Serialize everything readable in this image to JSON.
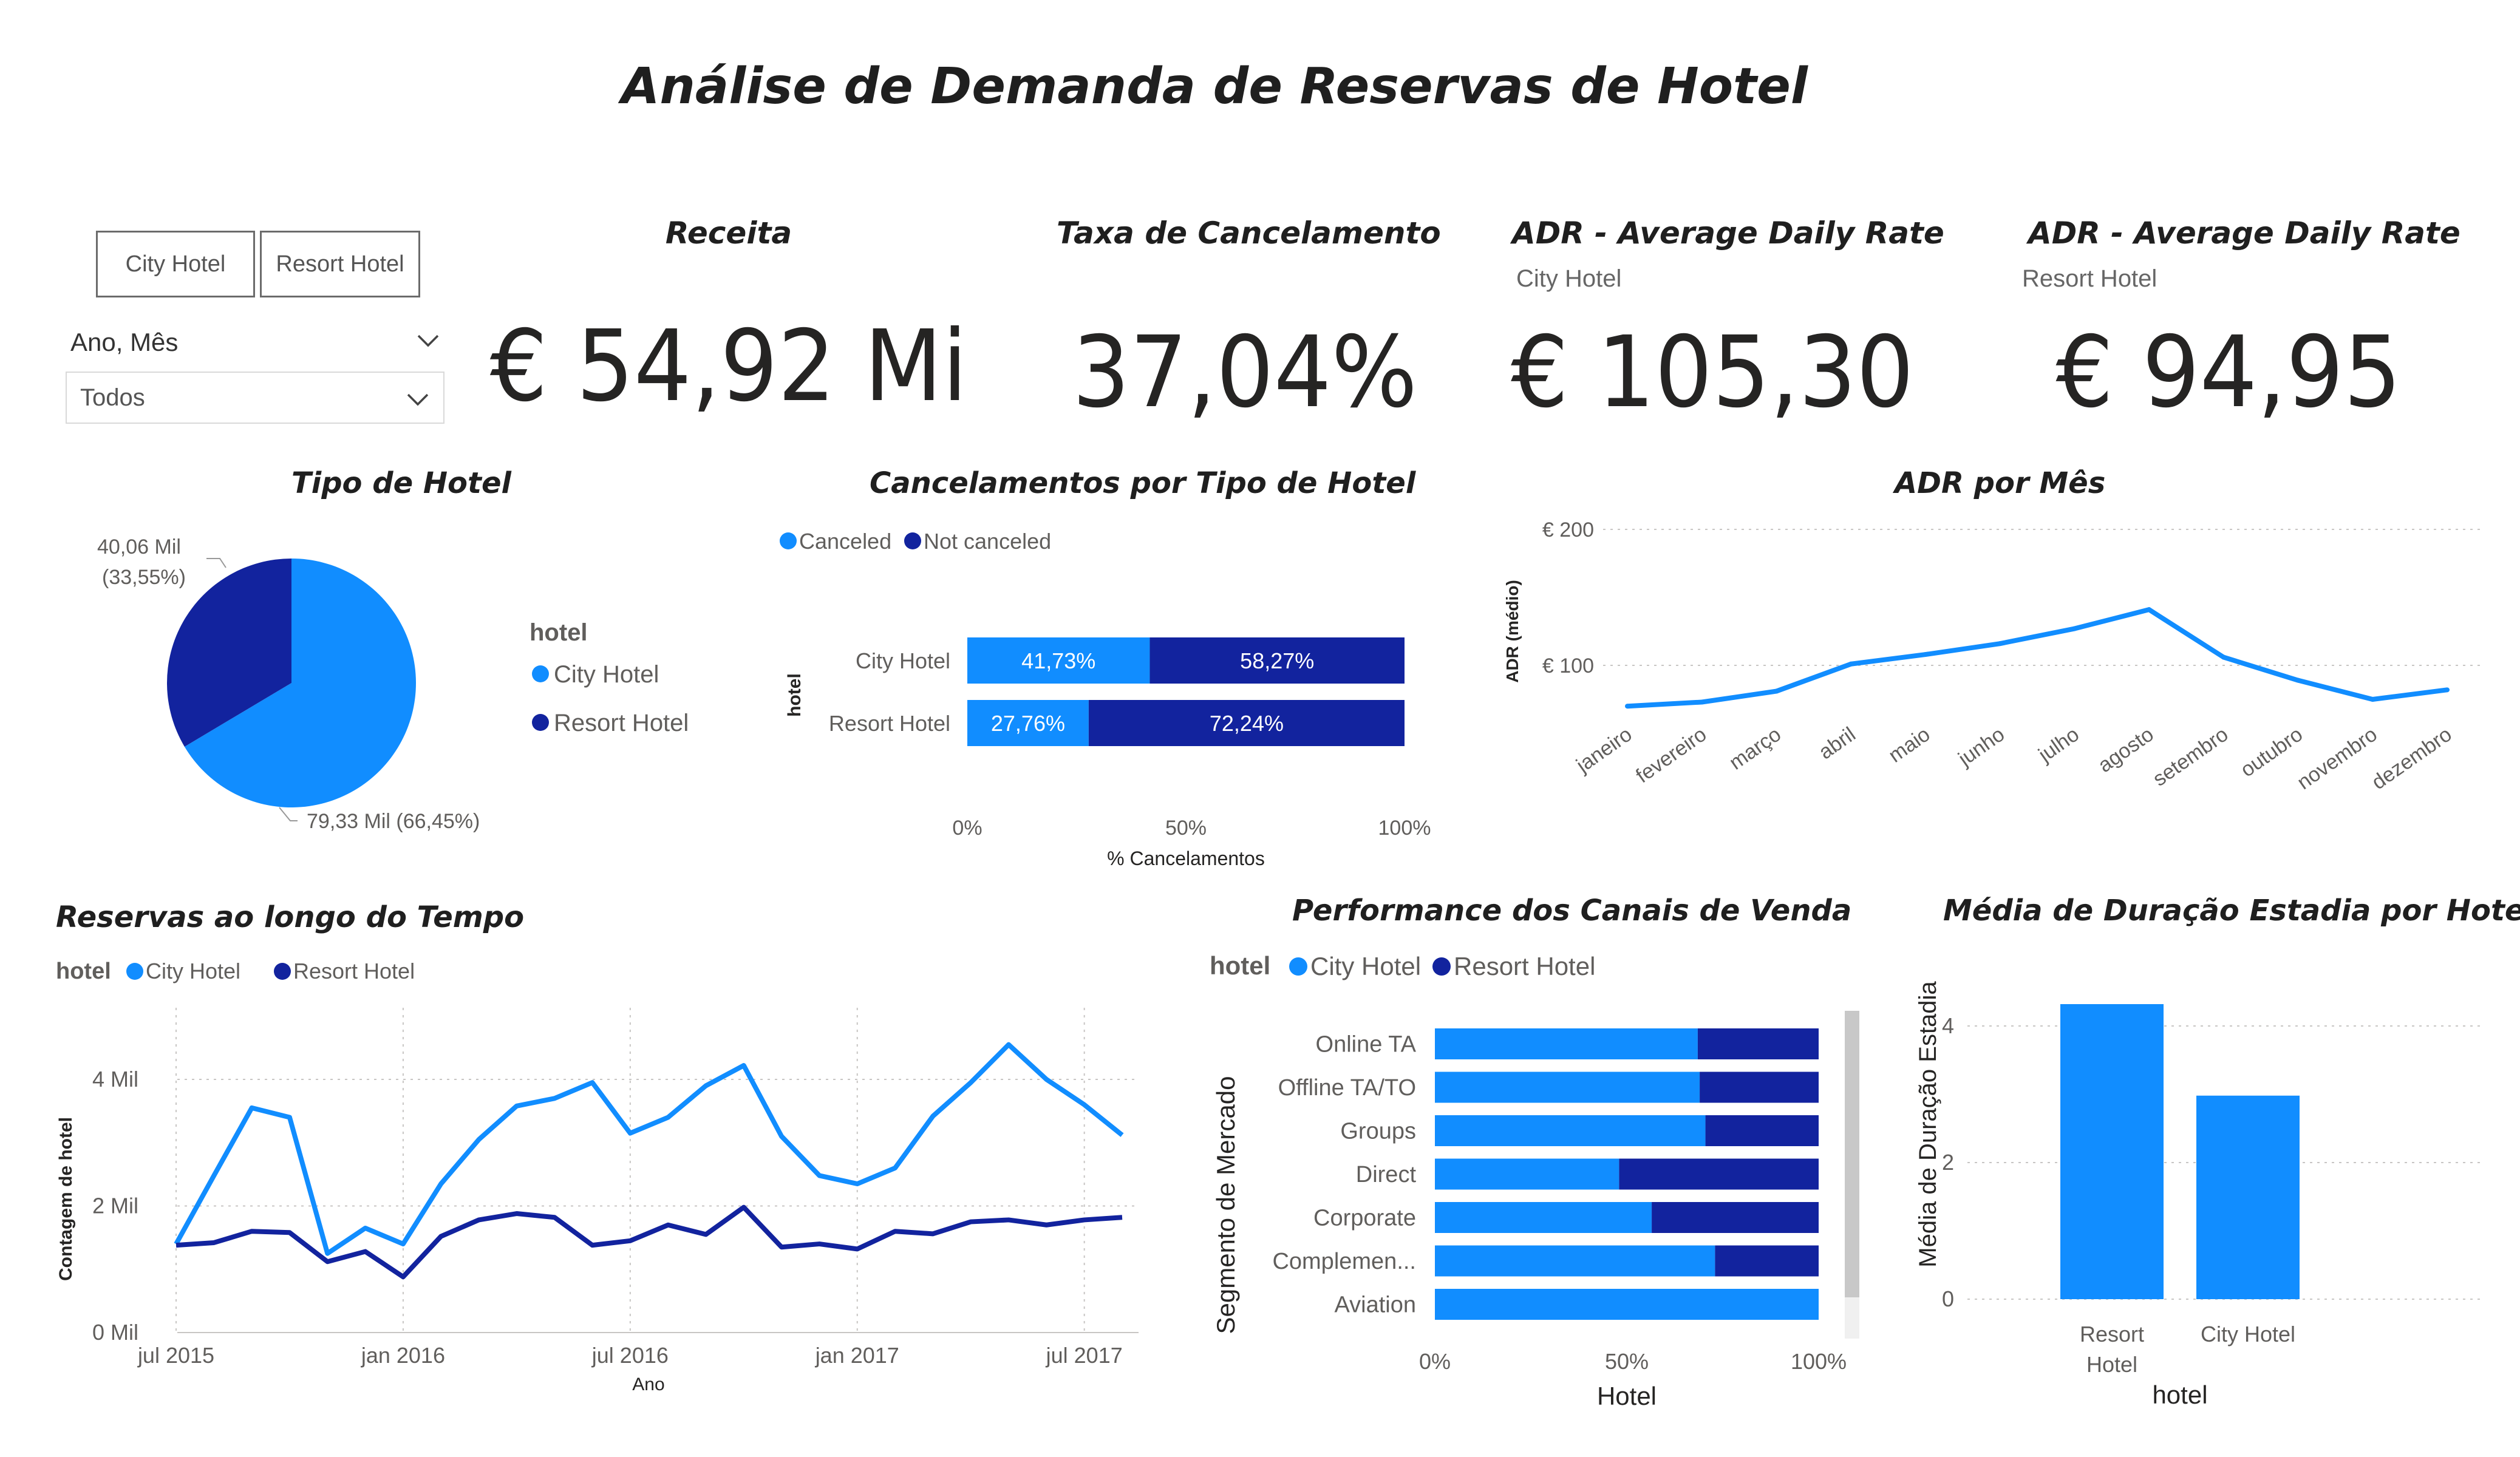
{
  "page": {
    "title": "Análise de Demanda de Reservas de Hotel"
  },
  "colors": {
    "city": "#118DFF",
    "resort": "#12239E",
    "text": "#252423",
    "axis": "#605E5C",
    "grid": "#C8C6C4"
  },
  "slicer": {
    "buttons": [
      "City Hotel",
      "Resort Hotel"
    ],
    "dropdown_label": "Ano, Mês",
    "dropdown_value": "Todos"
  },
  "kpis": {
    "receita": {
      "title": "Receita",
      "value": "€ 54,92 Mi"
    },
    "cancel": {
      "title": "Taxa de Cancelamento",
      "value": "37,04%"
    },
    "adr_city": {
      "title": "ADR - Average Daily Rate",
      "subtitle": "City Hotel",
      "value": "€ 105,30"
    },
    "adr_resort": {
      "title": "ADR - Average Daily Rate",
      "subtitle": "Resort Hotel",
      "value": "€ 94,95"
    }
  },
  "chart_data": [
    {
      "id": "tipo_hotel",
      "type": "pie",
      "title": "Tipo de Hotel",
      "legend_title": "hotel",
      "legend_position": "right",
      "slices": [
        {
          "name": "City Hotel",
          "value": 79.33,
          "pct": 66.45,
          "label": "79,33 Mil (66,45%)"
        },
        {
          "name": "Resort Hotel",
          "value": 40.06,
          "pct": 33.55,
          "label": "40,06 Mil\n(33,55%)"
        }
      ]
    },
    {
      "id": "cancelamentos",
      "type": "bar",
      "orientation": "horizontal",
      "stacked": "100%",
      "title": "Cancelamentos por Tipo de Hotel",
      "legend_position": "top-left",
      "categories": [
        "City Hotel",
        "Resort Hotel"
      ],
      "series": [
        {
          "name": "Canceled",
          "values": [
            41.73,
            27.76
          ],
          "labels": [
            "41,73%",
            "27,76%"
          ]
        },
        {
          "name": "Not canceled",
          "values": [
            58.27,
            72.24
          ],
          "labels": [
            "58,27%",
            "72,24%"
          ]
        }
      ],
      "xlabel": "% Cancelamentos",
      "ylabel": "hotel",
      "xticks": [
        "0%",
        "50%",
        "100%"
      ],
      "xlim": [
        0,
        100
      ]
    },
    {
      "id": "adr_mes",
      "type": "line",
      "title": "ADR por Mês",
      "categories": [
        "janeiro",
        "fevereiro",
        "março",
        "abril",
        "maio",
        "junho",
        "julho",
        "agosto",
        "setembro",
        "outubro",
        "novembro",
        "dezembro"
      ],
      "values": [
        70,
        73,
        81,
        101,
        108,
        116,
        127,
        141,
        106,
        89,
        75,
        82
      ],
      "ylabel": "ADR (médio)",
      "ylim": [
        0,
        200
      ],
      "yticks": [
        "€ 100",
        "€ 200"
      ],
      "grid": true
    },
    {
      "id": "reservas_tempo",
      "type": "line",
      "title": "Reservas ao longo do Tempo",
      "legend_title": "hotel",
      "legend_position": "top-left",
      "x": [
        "2015-07",
        "2015-08",
        "2015-09",
        "2015-10",
        "2015-11",
        "2015-12",
        "2016-01",
        "2016-02",
        "2016-03",
        "2016-04",
        "2016-05",
        "2016-06",
        "2016-07",
        "2016-08",
        "2016-09",
        "2016-10",
        "2016-11",
        "2016-12",
        "2017-01",
        "2017-02",
        "2017-03",
        "2017-04",
        "2017-05",
        "2017-06",
        "2017-07",
        "2017-08"
      ],
      "series": [
        {
          "name": "City Hotel",
          "values": [
            1.4,
            2.48,
            3.55,
            3.4,
            1.25,
            1.65,
            1.4,
            2.35,
            3.05,
            3.58,
            3.7,
            3.95,
            3.15,
            3.4,
            3.9,
            4.22,
            3.1,
            2.48,
            2.35,
            2.6,
            3.42,
            3.95,
            4.55,
            4.0,
            3.6,
            3.12
          ]
        },
        {
          "name": "Resort Hotel",
          "values": [
            1.38,
            1.42,
            1.6,
            1.58,
            1.12,
            1.28,
            0.88,
            1.52,
            1.78,
            1.88,
            1.82,
            1.38,
            1.45,
            1.7,
            1.55,
            1.98,
            1.35,
            1.4,
            1.32,
            1.6,
            1.56,
            1.75,
            1.78,
            1.7,
            1.78,
            1.82
          ]
        }
      ],
      "xticks": [
        "jul 2015",
        "jan 2016",
        "jul 2016",
        "jan 2017",
        "jul 2017"
      ],
      "yticks": [
        "0 Mil",
        "2 Mil",
        "4 Mil"
      ],
      "xlabel": "Ano",
      "ylabel": "Contagem de hotel",
      "ylim": [
        0,
        5
      ],
      "grid": true
    },
    {
      "id": "canais",
      "type": "bar",
      "orientation": "horizontal",
      "stacked": "100%",
      "title": "Performance dos Canais de Venda",
      "legend_title": "hotel",
      "legend_position": "top-left",
      "categories": [
        "Online TA",
        "Offline TA/TO",
        "Groups",
        "Direct",
        "Corporate",
        "Complemen...",
        "Aviation"
      ],
      "series": [
        {
          "name": "City Hotel",
          "values": [
            68.5,
            69.0,
            70.5,
            48.0,
            56.5,
            73.0,
            100
          ]
        },
        {
          "name": "Resort Hotel",
          "values": [
            31.5,
            31.0,
            29.5,
            52.0,
            43.5,
            27.0,
            0
          ]
        }
      ],
      "xlabel": "Hotel",
      "ylabel": "Segmento de Mercado",
      "xticks": [
        "0%",
        "50%",
        "100%"
      ],
      "xlim": [
        0,
        100
      ]
    },
    {
      "id": "duracao",
      "type": "bar",
      "title": "Média de Duração Estadia por Hotel",
      "categories": [
        "Resort Hotel",
        "City Hotel"
      ],
      "values": [
        4.32,
        2.98
      ],
      "xlabel": "hotel",
      "ylabel": "Média de Duração Estadia",
      "yticks": [
        "0",
        "2",
        "4"
      ],
      "ylim": [
        0,
        4.8
      ],
      "grid": true
    }
  ]
}
